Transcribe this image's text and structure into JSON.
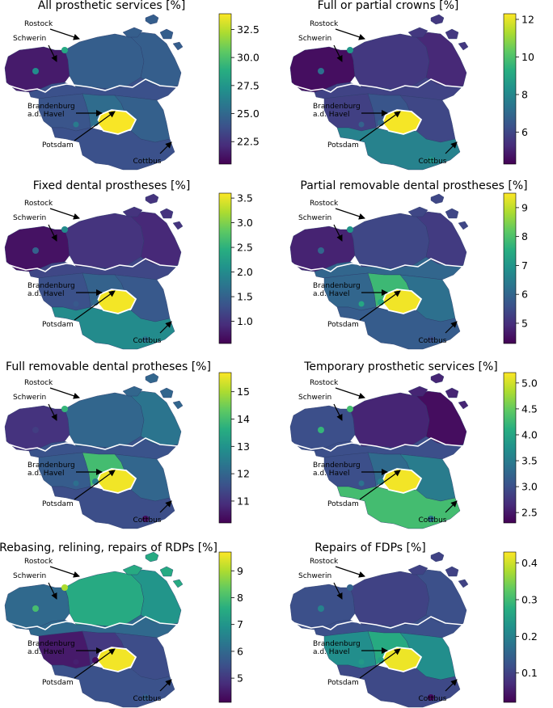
{
  "chart_data": [
    {
      "type": "choropleth",
      "title": "All prosthetic services [%]",
      "colorbar": {
        "ticks": [
          "22.5",
          "25.0",
          "27.5",
          "30.0",
          "32.5"
        ],
        "tick_values": [
          22.5,
          25.0,
          27.5,
          30.0,
          32.5
        ],
        "range": [
          20.5,
          33.9
        ],
        "colormap": "viridis"
      },
      "region_values": {
        "mv_west": 21.5,
        "mv_center": 24.5,
        "mv_east": 24.5,
        "rostock": 28.5,
        "schwerin": 27.0,
        "bb_north": 23.8,
        "bb_west": 24.0,
        "bb_center": 25.2,
        "bb_east": 24.6,
        "bb_south": 23.8,
        "potsdam": 25.5,
        "brandenburg_city": 26.0,
        "berlin": 33.8,
        "cottbus": 24.0
      },
      "cities": [
        "Rostock",
        "Schwerin",
        "Brandenburg",
        "a.d. Havel",
        "Potsdam",
        "Cottbus"
      ]
    },
    {
      "type": "choropleth",
      "title": "Full or partial crowns [%]",
      "colorbar": {
        "ticks": [
          "6",
          "8",
          "10",
          "12"
        ],
        "tick_values": [
          6,
          8,
          10,
          12
        ],
        "range": [
          4.3,
          12.3
        ],
        "colormap": "viridis"
      },
      "region_values": {
        "mv_west": 4.6,
        "mv_center": 5.6,
        "mv_east": 5.2,
        "rostock": 8.5,
        "schwerin": 7.2,
        "bb_north": 5.9,
        "bb_west": 5.8,
        "bb_center": 6.4,
        "bb_east": 6.0,
        "bb_south": 7.8,
        "potsdam": 7.0,
        "brandenburg_city": 6.8,
        "berlin": 12.2,
        "cottbus": 8.5
      },
      "cities": [
        "Rostock",
        "Schwerin",
        "Brandenburg",
        "a.d. Havel",
        "Potsdam",
        "Cottbus"
      ]
    },
    {
      "type": "choropleth",
      "title": "Fixed dental prostheses [%]",
      "colorbar": {
        "ticks": [
          "1.0",
          "1.5",
          "2.0",
          "2.5",
          "3.0",
          "3.5"
        ],
        "tick_values": [
          1.0,
          1.5,
          2.0,
          2.5,
          3.0,
          3.5
        ],
        "range": [
          0.55,
          3.6
        ],
        "colormap": "viridis"
      },
      "region_values": {
        "mv_west": 0.7,
        "mv_center": 1.0,
        "mv_east": 0.9,
        "rostock": 2.0,
        "schwerin": 1.5,
        "bb_north": 1.2,
        "bb_west": 1.3,
        "bb_center": 1.5,
        "bb_east": 1.4,
        "bb_south": 2.0,
        "potsdam": 1.6,
        "brandenburg_city": 1.4,
        "berlin": 3.55,
        "cottbus": 1.7
      },
      "cities": [
        "Rostock",
        "Schwerin",
        "Brandenburg",
        "a.d. Havel",
        "Potsdam",
        "Cottbus"
      ]
    },
    {
      "type": "choropleth",
      "title": "Partial removable dental prostheses [%]",
      "colorbar": {
        "ticks": [
          "5",
          "6",
          "7",
          "8",
          "9"
        ],
        "tick_values": [
          5,
          6,
          7,
          8,
          9
        ],
        "range": [
          4.3,
          9.5
        ],
        "colormap": "viridis"
      },
      "region_values": {
        "mv_west": 4.8,
        "mv_center": 5.4,
        "mv_east": 5.2,
        "rostock": 7.0,
        "schwerin": 6.0,
        "bb_north": 6.0,
        "bb_west": 6.0,
        "bb_center": 7.8,
        "bb_east": 6.2,
        "bb_south": 5.8,
        "potsdam": 7.5,
        "brandenburg_city": 7.4,
        "berlin": 9.4,
        "cottbus": 5.6
      },
      "cities": [
        "Rostock",
        "Schwerin",
        "Brandenburg",
        "a.d. Havel",
        "Potsdam",
        "Cottbus"
      ]
    },
    {
      "type": "choropleth",
      "title": "Full removable dental protheses [%]",
      "colorbar": {
        "ticks": [
          "11",
          "12",
          "13",
          "14",
          "15"
        ],
        "tick_values": [
          11,
          12,
          13,
          14,
          15
        ],
        "range": [
          10.2,
          15.7
        ],
        "colormap": "viridis"
      },
      "region_values": {
        "mv_west": 11.0,
        "mv_center": 12.0,
        "mv_east": 12.3,
        "rostock": 13.8,
        "schwerin": 11.2,
        "bb_north": 11.6,
        "bb_west": 11.8,
        "bb_center": 14.0,
        "bb_east": 12.0,
        "bb_south": 11.5,
        "potsdam": 12.5,
        "brandenburg_city": 12.2,
        "berlin": 15.6,
        "cottbus": 10.4
      },
      "cities": [
        "Rostock",
        "Schwerin",
        "Brandenburg",
        "a.d. Havel",
        "Potsdam",
        "Cottbus"
      ]
    },
    {
      "type": "choropleth",
      "title": "Temporary prosthetic services [%]",
      "colorbar": {
        "ticks": [
          "2.5",
          "3.0",
          "3.5",
          "4.0",
          "4.5",
          "5.0"
        ],
        "tick_values": [
          2.5,
          3.0,
          3.5,
          4.0,
          4.5,
          5.0
        ],
        "range": [
          2.3,
          5.2
        ],
        "colormap": "viridis"
      },
      "region_values": {
        "mv_west": 3.0,
        "mv_center": 2.6,
        "mv_east": 2.4,
        "rostock": 4.3,
        "schwerin": 4.2,
        "bb_north": 3.0,
        "bb_west": 3.0,
        "bb_center": 3.3,
        "bb_east": 3.5,
        "bb_south": 4.3,
        "potsdam": 3.6,
        "brandenburg_city": 3.4,
        "berlin": 5.15,
        "cottbus": 3.4
      },
      "cities": [
        "Rostock",
        "Schwerin",
        "Brandenburg",
        "a.d. Havel",
        "Potsdam",
        "Cottbus"
      ]
    },
    {
      "type": "choropleth",
      "title": "Rebasing, relining, repairs of RDPs [%]",
      "colorbar": {
        "ticks": [
          "5",
          "6",
          "7",
          "8",
          "9"
        ],
        "tick_values": [
          5,
          6,
          7,
          8,
          9
        ],
        "range": [
          4.1,
          9.7
        ],
        "colormap": "viridis"
      },
      "region_values": {
        "mv_west": 6.0,
        "mv_center": 7.5,
        "mv_east": 7.0,
        "rostock": 9.0,
        "schwerin": 8.0,
        "bb_north": 6.0,
        "bb_west": 4.5,
        "bb_center": 5.0,
        "bb_east": 5.4,
        "bb_south": 5.5,
        "potsdam": 4.3,
        "brandenburg_city": 4.6,
        "berlin": 9.6,
        "cottbus": 5.8
      },
      "cities": [
        "Rostock",
        "Schwerin",
        "Brandenburg",
        "a.d. Havel",
        "Potsdam",
        "Cottbus"
      ]
    },
    {
      "type": "choropleth",
      "title": "Repairs of FDPs [%]",
      "colorbar": {
        "ticks": [
          "0.1",
          "0.2",
          "0.3",
          "0.4"
        ],
        "tick_values": [
          0.1,
          0.2,
          0.3,
          0.4
        ],
        "range": [
          0.02,
          0.43
        ],
        "colormap": "viridis"
      },
      "region_values": {
        "mv_west": 0.12,
        "mv_center": 0.1,
        "mv_east": 0.12,
        "rostock": 0.15,
        "schwerin": 0.2,
        "bb_north": 0.12,
        "bb_west": 0.22,
        "bb_center": 0.27,
        "bb_east": 0.22,
        "bb_south": 0.11,
        "potsdam": 0.25,
        "brandenburg_city": 0.24,
        "berlin": 0.42,
        "cottbus": 0.03
      },
      "cities": [
        "Rostock",
        "Schwerin",
        "Brandenburg",
        "a.d. Havel",
        "Potsdam",
        "Cottbus"
      ]
    }
  ]
}
